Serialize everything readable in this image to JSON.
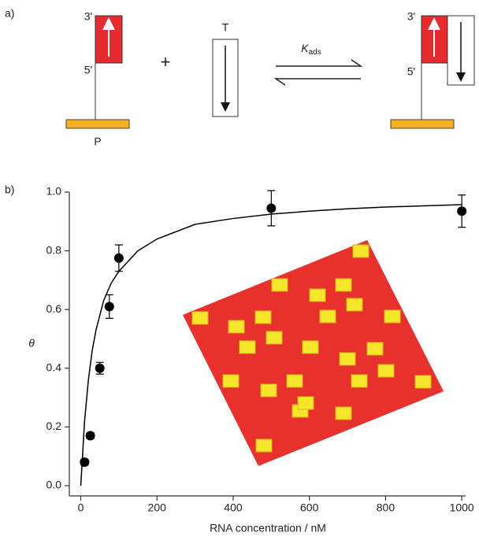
{
  "panel_a": {
    "label": "a)",
    "left": {
      "three_prime": "3'",
      "five_prime": "5'",
      "probe": "P"
    },
    "plus": "+",
    "target": "T",
    "constant": {
      "symbol": "K",
      "subscript": "ads"
    },
    "right": {
      "three_prime": "3'",
      "five_prime": "5'"
    }
  },
  "chart_data": {
    "type": "scatter",
    "panel_label": "b)",
    "x_label": "RNA concentration / nM",
    "y_label": "θ",
    "x": [
      10,
      25,
      50,
      75,
      100,
      500,
      1000
    ],
    "values": [
      0.08,
      0.17,
      0.4,
      0.61,
      0.775,
      0.945,
      0.935
    ],
    "errors": [
      0.01,
      0.01,
      0.02,
      0.04,
      0.045,
      0.06,
      0.055
    ],
    "color": "#000000",
    "fit": {
      "x": [
        0,
        10,
        20,
        30,
        40,
        60,
        80,
        100,
        150,
        200,
        300,
        400,
        500,
        600,
        700,
        800,
        900,
        1000
      ],
      "values": [
        0,
        0.22,
        0.36,
        0.46,
        0.53,
        0.63,
        0.69,
        0.73,
        0.8,
        0.84,
        0.89,
        0.91,
        0.925,
        0.935,
        0.943,
        0.949,
        0.953,
        0.957
      ],
      "color": "#000000"
    },
    "xlim": [
      -30,
      1010
    ],
    "ylim": [
      -0.035,
      1.0
    ],
    "xticks": [
      0,
      200,
      400,
      600,
      800,
      1000
    ],
    "yticks": [
      {
        "value": 0,
        "label": "0.0"
      },
      0.2,
      0.4,
      0.6,
      0.8,
      {
        "value": 1,
        "label": "1.0"
      }
    ]
  }
}
